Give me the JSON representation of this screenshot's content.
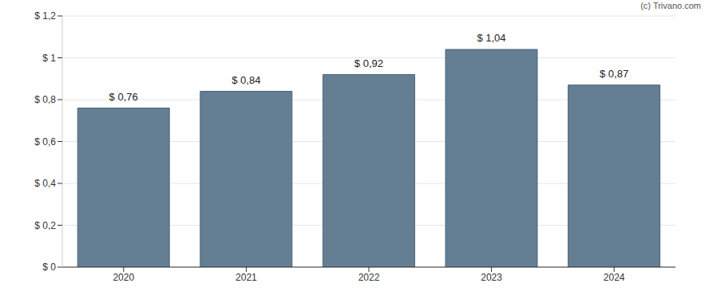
{
  "chart_data": {
    "type": "bar",
    "annotations": [
      "(c) Trivano.com"
    ],
    "categories": [
      "2020",
      "2021",
      "2022",
      "2023",
      "2024"
    ],
    "values": [
      0.76,
      0.84,
      0.92,
      1.04,
      0.87
    ],
    "value_labels": [
      "$ 0,76",
      "$ 0,84",
      "$ 0,92",
      "$ 1,04",
      "$ 0,87"
    ],
    "data_labels": true,
    "color": "#647f94",
    "ylim": [
      0,
      1.2
    ],
    "yticks": [
      {
        "value": 0,
        "label": "$ 0"
      },
      {
        "value": 0.2,
        "label": "$ 0,2"
      },
      {
        "value": 0.4,
        "label": "$ 0,4"
      },
      {
        "value": 0.6,
        "label": "$ 0,6"
      },
      {
        "value": 0.8,
        "label": "$ 0,8"
      },
      {
        "value": 1,
        "label": "$ 1"
      },
      {
        "value": 1.2,
        "label": "$ 1,2"
      }
    ],
    "grid": true
  }
}
